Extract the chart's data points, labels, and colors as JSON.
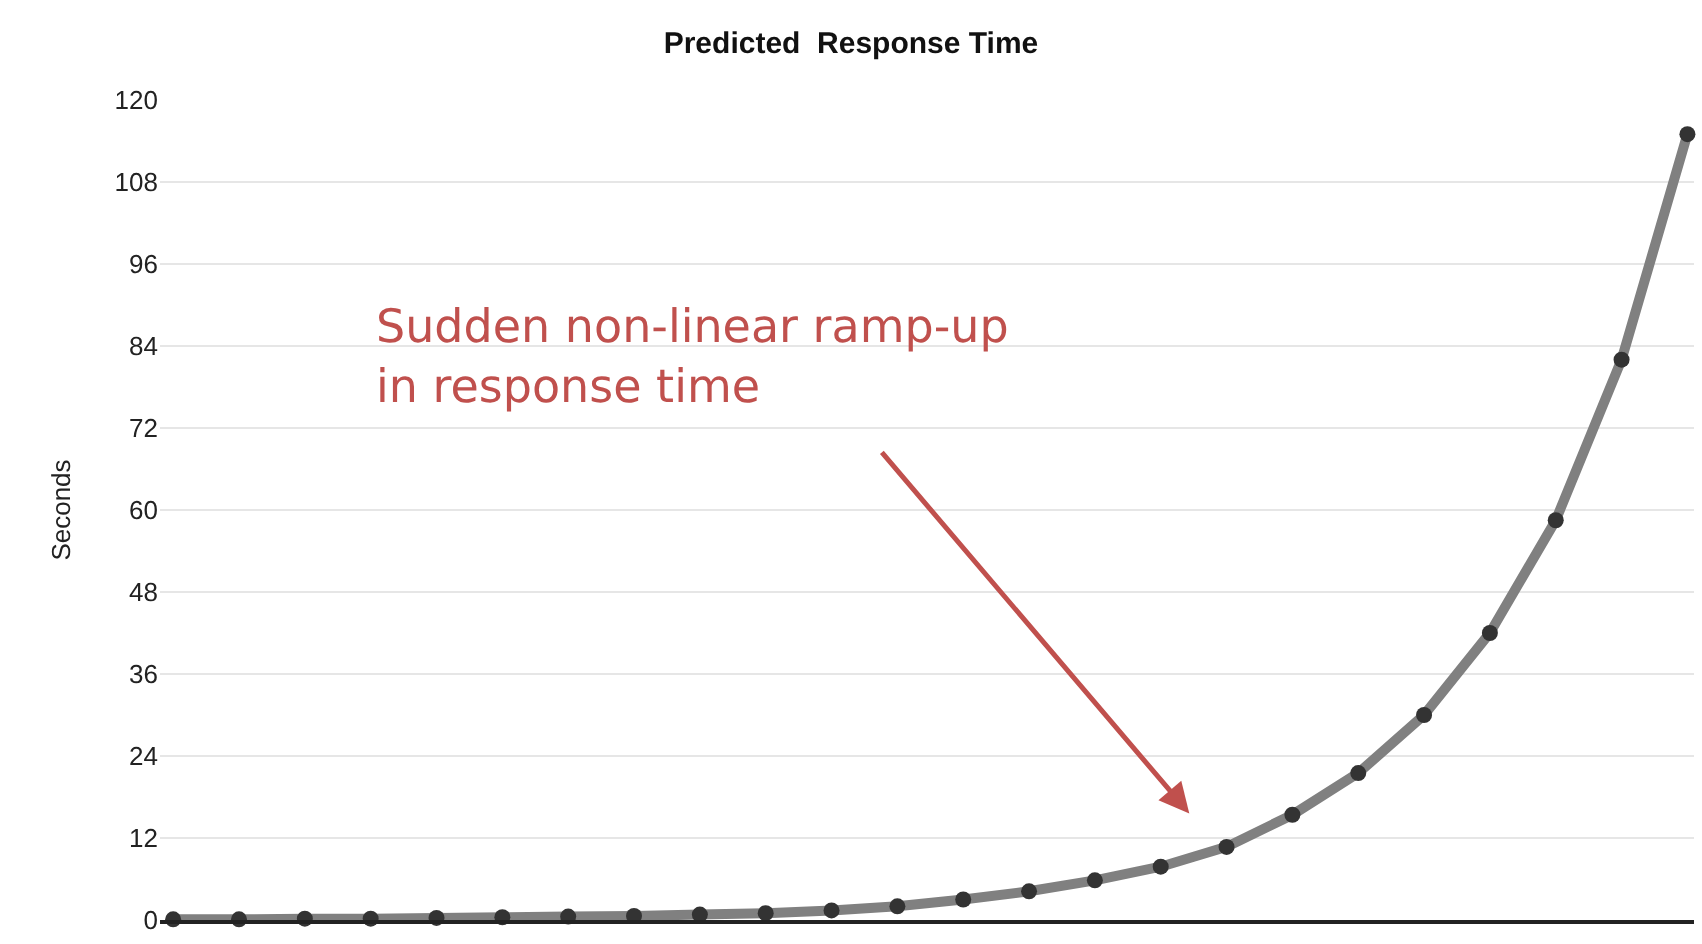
{
  "chart_data": {
    "type": "line",
    "title": "Predicted  Response Time",
    "ylabel": "Seconds",
    "categories": [
      null,
      null,
      null,
      null,
      null,
      null,
      null,
      null,
      null,
      null,
      null,
      null,
      null,
      null,
      null,
      null,
      null,
      null,
      null,
      null,
      null,
      null,
      null,
      null
    ],
    "series": [
      {
        "color": "#808080",
        "values": [
          0.1,
          0.1,
          0.2,
          0.2,
          0.3,
          0.4,
          0.5,
          0.6,
          0.8,
          1,
          1.4,
          2,
          3,
          4.2,
          5.8,
          7.8,
          10.7,
          15.4,
          21.5,
          30,
          42,
          58.5,
          82,
          115
        ]
      }
    ],
    "ylim": [
      0,
      120
    ],
    "yticks": [
      0,
      12,
      24,
      36,
      48,
      60,
      72,
      84,
      96,
      108,
      120
    ],
    "grid": "y",
    "tick_labels": "y",
    "marker": "circle",
    "line_style": "solid",
    "annotations": [
      "Sudden non-linear ramp-up\nin response time"
    ]
  }
}
